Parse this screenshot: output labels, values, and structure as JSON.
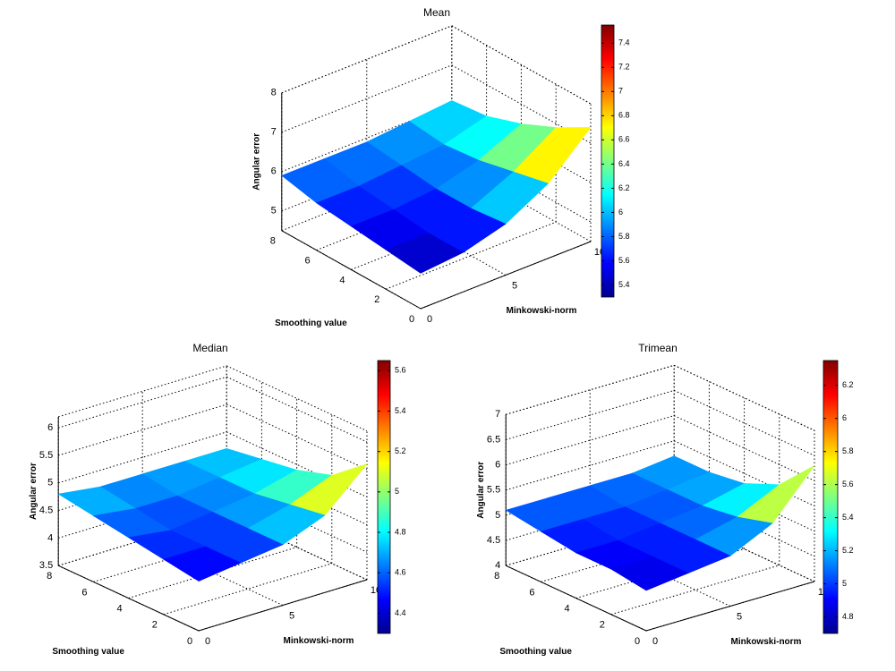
{
  "chart_data": [
    {
      "type": "surface",
      "title": "Mean",
      "xlabel": "Minkowski-norm",
      "ylabel": "Smoothing value",
      "zlabel": "Angular error",
      "x": [
        0,
        2.5,
        5,
        7.5,
        10
      ],
      "y": [
        0,
        2,
        4,
        6,
        8
      ],
      "z": [
        [
          5.4,
          5.5,
          5.8,
          6.4,
          7.4
        ],
        [
          5.5,
          5.5,
          5.7,
          6.2,
          6.9
        ],
        [
          5.6,
          5.6,
          5.7,
          6.0,
          6.5
        ],
        [
          5.7,
          5.7,
          5.8,
          5.9,
          6.2
        ],
        [
          5.9,
          5.9,
          5.9,
          6.0,
          6.1
        ]
      ],
      "xlim": [
        0,
        10
      ],
      "ylim": [
        0,
        8
      ],
      "zlim": [
        4.5,
        8
      ],
      "xticks": [
        0,
        5,
        10
      ],
      "yticks": [
        0,
        2,
        4,
        6,
        8
      ],
      "zticks": [
        5,
        6,
        7,
        8
      ],
      "clim": [
        5.3,
        7.55
      ],
      "cticks": [
        5.4,
        5.6,
        5.8,
        6,
        6.2,
        6.4,
        6.6,
        6.8,
        7,
        7.2,
        7.4
      ]
    },
    {
      "type": "surface",
      "title": "Median",
      "xlabel": "Minkowski-norm",
      "ylabel": "Smoothing value",
      "zlabel": "Angular error",
      "x": [
        0,
        2.5,
        5,
        7.5,
        10
      ],
      "y": [
        0,
        2,
        4,
        6,
        8
      ],
      "z": [
        [
          4.4,
          4.5,
          4.6,
          4.9,
          5.6
        ],
        [
          4.5,
          4.5,
          4.6,
          4.8,
          5.1
        ],
        [
          4.6,
          4.5,
          4.6,
          4.7,
          4.9
        ],
        [
          4.7,
          4.6,
          4.6,
          4.7,
          4.8
        ],
        [
          4.8,
          4.7,
          4.7,
          4.7,
          4.7
        ]
      ],
      "xlim": [
        0,
        10
      ],
      "ylim": [
        0,
        8
      ],
      "zlim": [
        3.5,
        6.2
      ],
      "xticks": [
        0,
        5,
        10
      ],
      "yticks": [
        0,
        2,
        4,
        6,
        8
      ],
      "zticks": [
        3.5,
        4,
        4.5,
        5,
        5.5,
        6
      ],
      "clim": [
        4.3,
        5.65
      ],
      "cticks": [
        4.4,
        4.6,
        4.8,
        5,
        5.2,
        5.4,
        5.6
      ]
    },
    {
      "type": "surface",
      "title": "Trimean",
      "xlabel": "Minkowski-norm",
      "ylabel": "Smoothing value",
      "zlabel": "Angular error",
      "x": [
        0,
        2.5,
        5,
        7.5,
        10
      ],
      "y": [
        0,
        2,
        4,
        6,
        8
      ],
      "z": [
        [
          4.8,
          4.9,
          5.0,
          5.4,
          6.3
        ],
        [
          4.9,
          4.9,
          5.0,
          5.2,
          5.6
        ],
        [
          4.9,
          4.9,
          5.0,
          5.1,
          5.3
        ],
        [
          5.0,
          5.0,
          5.0,
          5.1,
          5.2
        ],
        [
          5.1,
          5.1,
          5.1,
          5.1,
          5.2
        ]
      ],
      "xlim": [
        0,
        10
      ],
      "ylim": [
        0,
        8
      ],
      "zlim": [
        4,
        7
      ],
      "xticks": [
        0,
        5,
        10
      ],
      "yticks": [
        0,
        2,
        4,
        6,
        8
      ],
      "zticks": [
        4,
        4.5,
        5,
        5.5,
        6,
        6.5,
        7
      ],
      "clim": [
        4.7,
        6.35
      ],
      "cticks": [
        4.8,
        5,
        5.2,
        5.4,
        5.6,
        5.8,
        6,
        6.2
      ]
    }
  ]
}
